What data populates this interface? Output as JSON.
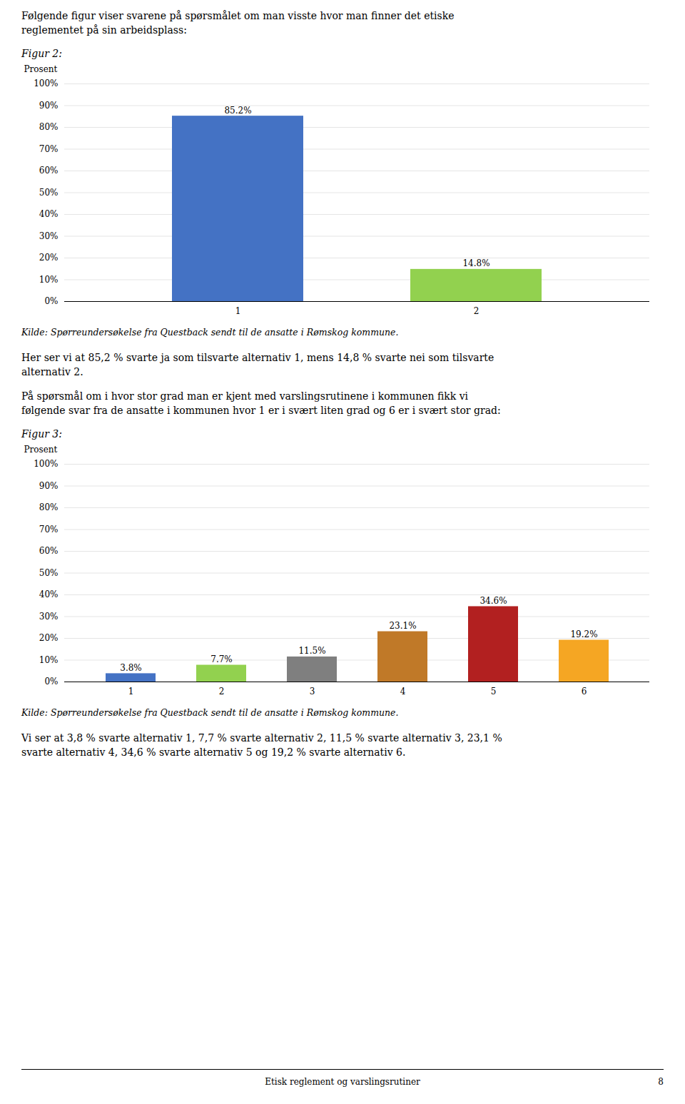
{
  "chart_data": [
    {
      "type": "bar",
      "title": "Figur 2:",
      "annotations": {
        "before": [
          "Følgende figur viser svarene på spørsmålet om man visste hvor man finner det etiske\nreglementet på sin arbeidsplass:"
        ],
        "after": [
          "Kilde: Spørreundersøkelse fra Questback sendt til de ansatte i Rømskog kommune.",
          "Her ser vi at 85,2 % svarte ja som tilsvarte alternativ 1, mens 14,8 % svarte nei som tilsvarte\nalternativ 2."
        ]
      },
      "categories": [
        "1",
        "2"
      ],
      "values": [
        85.2,
        14.8
      ],
      "value_labels": [
        "85.2%",
        "14.8%"
      ],
      "colors": [
        "#4472C4",
        "#92D14F"
      ],
      "ylabel": "Prosent",
      "ylim": [
        0,
        100
      ],
      "yticks": [
        {
          "value": 0,
          "label": "0%"
        },
        {
          "value": 10,
          "label": "10%"
        },
        {
          "value": 20,
          "label": "20%"
        },
        {
          "value": 30,
          "label": "30%"
        },
        {
          "value": 40,
          "label": "40%"
        },
        {
          "value": 50,
          "label": "50%"
        },
        {
          "value": 60,
          "label": "60%"
        },
        {
          "value": 70,
          "label": "70%"
        },
        {
          "value": 80,
          "label": "80%"
        },
        {
          "value": 90,
          "label": "90%"
        },
        {
          "value": 100,
          "label": "100%"
        }
      ],
      "grid": true,
      "data_labels": true
    },
    {
      "type": "bar",
      "title": "Figur 3:",
      "annotations": {
        "before": [
          "På spørsmål om i hvor stor grad man er kjent med varslingsrutinene i kommunen fikk vi\nfølgende svar fra de ansatte i kommunen hvor 1 er i svært liten grad og 6 er i svært stor grad:"
        ],
        "after": [
          "Kilde: Spørreundersøkelse fra Questback sendt til de ansatte i Rømskog kommune.",
          "Vi ser at 3,8 % svarte alternativ 1, 7,7 % svarte alternativ 2, 11,5 % svarte alternativ 3, 23,1 %\nsvarte alternativ 4, 34,6 % svarte alternativ 5 og 19,2 % svarte alternativ 6."
        ]
      },
      "categories": [
        "1",
        "2",
        "3",
        "4",
        "5",
        "6"
      ],
      "values": [
        3.8,
        7.7,
        11.5,
        23.1,
        34.6,
        19.2
      ],
      "value_labels": [
        "3.8%",
        "7.7%",
        "11.5%",
        "23.1%",
        "34.6%",
        "19.2%"
      ],
      "colors": [
        "#4472C4",
        "#92D14F",
        "#7F7F7F",
        "#C07928",
        "#B22020",
        "#F5A623"
      ],
      "ylabel": "Prosent",
      "ylim": [
        0,
        100
      ],
      "yticks": [
        {
          "value": 0,
          "label": "0%"
        },
        {
          "value": 10,
          "label": "10%"
        },
        {
          "value": 20,
          "label": "20%"
        },
        {
          "value": 30,
          "label": "30%"
        },
        {
          "value": 40,
          "label": "40%"
        },
        {
          "value": 50,
          "label": "50%"
        },
        {
          "value": 60,
          "label": "60%"
        },
        {
          "value": 70,
          "label": "70%"
        },
        {
          "value": 80,
          "label": "80%"
        },
        {
          "value": 90,
          "label": "90%"
        },
        {
          "value": 100,
          "label": "100%"
        }
      ],
      "grid": true,
      "data_labels": true
    }
  ],
  "footer": [
    "Etisk reglement og varslingsrutiner",
    "8"
  ]
}
